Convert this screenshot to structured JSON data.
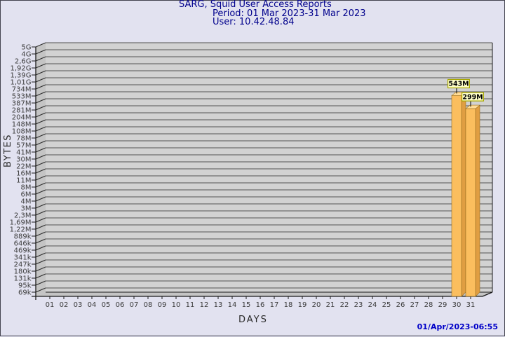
{
  "window": {
    "background": "#e2e2f0",
    "frame_color": "#43434f"
  },
  "header": {
    "title": "SARG, Squid User Access Reports",
    "period": "Period: 01 Mar 2023-31 Mar 2023",
    "user": "User: 10.42.48.84",
    "text_color": "#00008c"
  },
  "footer": {
    "generated": "01/Apr/2023-06:55",
    "text_color": "#0000c8"
  },
  "chart_data": {
    "type": "bar",
    "title": "SARG, Squid User Access Reports",
    "subtitle": "Period: 01 Mar 2023-31 Mar 2023 / User: 10.42.48.84",
    "xlabel": "DAYS",
    "ylabel": "BYTES",
    "y_scale": "logarithmic",
    "grid": true,
    "legend": "none",
    "y_tick_labels": [
      "5G",
      "4G",
      "2,6G",
      "1,92G",
      "1,39G",
      "1,01G",
      "734M",
      "533M",
      "387M",
      "281M",
      "204M",
      "148M",
      "108M",
      "78M",
      "57M",
      "41M",
      "30M",
      "22M",
      "16M",
      "11M",
      "8M",
      "6M",
      "4M",
      "3M",
      "2,3M",
      "1,69M",
      "1,22M",
      "889k",
      "646k",
      "469k",
      "341k",
      "247k",
      "180k",
      "131k",
      "95k",
      "69k"
    ],
    "y_tick_values": [
      5000000000,
      4000000000,
      2600000000,
      1920000000,
      1390000000,
      1010000000,
      734000000,
      533000000,
      387000000,
      281000000,
      204000000,
      148000000,
      108000000,
      78000000,
      57000000,
      41000000,
      30000000,
      22000000,
      16000000,
      11000000,
      8000000,
      6000000,
      4000000,
      3000000,
      2300000,
      1690000,
      1220000,
      889000,
      646000,
      469000,
      341000,
      247000,
      180000,
      131000,
      95000,
      69000
    ],
    "x_tick_labels": [
      "01",
      "02",
      "03",
      "04",
      "05",
      "06",
      "07",
      "08",
      "09",
      "10",
      "11",
      "12",
      "13",
      "14",
      "15",
      "16",
      "17",
      "18",
      "19",
      "20",
      "21",
      "22",
      "23",
      "24",
      "25",
      "26",
      "27",
      "28",
      "29",
      "30",
      "31"
    ],
    "bars": [
      {
        "day": "30",
        "value_label": "543M",
        "value_bytes": 543000000
      },
      {
        "day": "31",
        "value_label": "299M",
        "value_bytes": 299000000
      }
    ],
    "colors": {
      "plot_bg": "#d2d2d2",
      "grid_line": "#6e6e6e",
      "wall": "#c4c4c4",
      "axis_line": "#1a1a1a",
      "tick_text": "#3c3c3c",
      "bar_front": "#fbbe5e",
      "bar_top": "#ffdc96",
      "bar_side": "#e09e42",
      "bar_edge": "#9a7020",
      "value_box_bg": "#ffffc8",
      "value_box_border": "#a8a800",
      "value_text": "#000000"
    }
  }
}
